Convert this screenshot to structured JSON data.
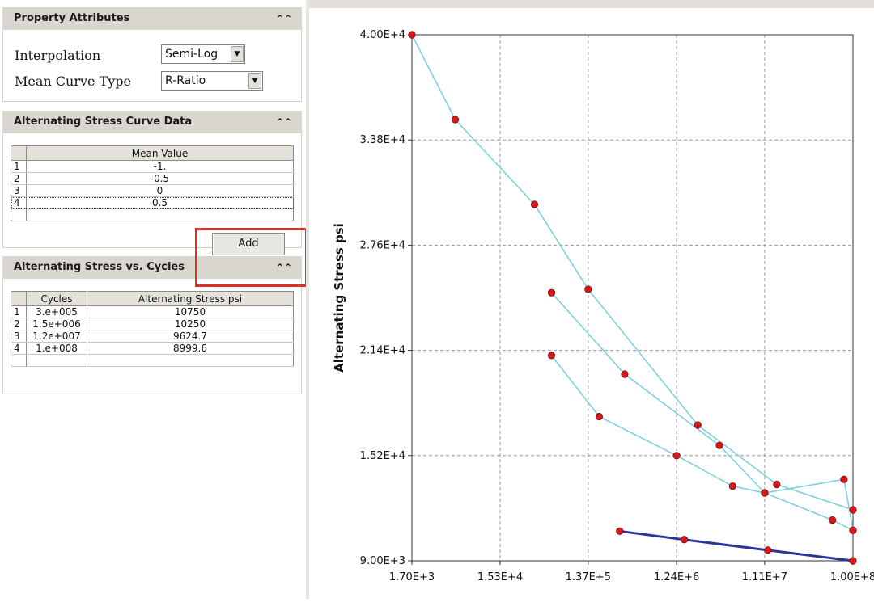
{
  "property_attributes": {
    "header": "Property Attributes",
    "collapse_icon": "double-chevron-up-icon",
    "interpolation_label": "Interpolation",
    "interpolation_value": "Semi-Log",
    "mean_curve_label": "Mean Curve Type",
    "mean_curve_value": "R-Ratio"
  },
  "curve_data": {
    "header": "Alternating Stress Curve Data",
    "column": "Mean Value",
    "rows": [
      {
        "num": "1",
        "value": "-1."
      },
      {
        "num": "2",
        "value": "-0.5"
      },
      {
        "num": "3",
        "value": "0"
      },
      {
        "num": "4",
        "value": "0.5"
      }
    ],
    "add_label": "Add"
  },
  "stress_cycles": {
    "header": "Alternating Stress vs. Cycles",
    "columns": [
      "Cycles",
      "Alternating Stress psi"
    ],
    "rows": [
      {
        "num": "1",
        "cycles": "3.e+005",
        "stress": "10750"
      },
      {
        "num": "2",
        "cycles": "1.5e+006",
        "stress": "10250"
      },
      {
        "num": "3",
        "cycles": "1.2e+007",
        "stress": "9624.7"
      },
      {
        "num": "4",
        "cycles": "1.e+008",
        "stress": "8999.6"
      }
    ]
  },
  "chart_data": {
    "type": "line",
    "title": "",
    "xlabel": "",
    "ylabel": "Alternating Stress psi",
    "x_scale": "log",
    "xlim": [
      1700,
      100000000
    ],
    "ylim": [
      9000,
      40000
    ],
    "x_ticks": [
      1700,
      15300,
      137000,
      1240000,
      11100000,
      100000000
    ],
    "x_tick_labels": [
      "1.70E+3",
      "1.53E+4",
      "1.37E+5",
      "1.24E+6",
      "1.11E+7",
      "1.00E+8"
    ],
    "y_ticks": [
      9000,
      15200,
      21400,
      27600,
      33800,
      40000
    ],
    "y_tick_labels": [
      "9.00E+3",
      "1.52E+4",
      "2.14E+4",
      "2.76E+4",
      "3.38E+4",
      "4.00E+4"
    ],
    "grid": true,
    "colors": {
      "curve": "#7fd0df",
      "selected_curve": "#2b3597",
      "marker": "#d61a1a"
    },
    "series": [
      {
        "selected": false,
        "points": [
          [
            1700,
            40000
          ],
          [
            5000,
            35000
          ],
          [
            36000,
            30000
          ],
          [
            137000,
            25000
          ],
          [
            2100000,
            17000
          ],
          [
            15000000,
            13500
          ],
          [
            100000000,
            12000
          ]
        ]
      },
      {
        "selected": false,
        "points": [
          [
            55000,
            24800
          ],
          [
            340000,
            20000
          ],
          [
            3600000,
            15800
          ],
          [
            11100000,
            13000
          ],
          [
            60000000,
            11400
          ],
          [
            100000000,
            10800
          ]
        ]
      },
      {
        "selected": false,
        "points": [
          [
            55000,
            21100
          ],
          [
            180000,
            17500
          ],
          [
            1240000,
            15200
          ],
          [
            5000000,
            13400
          ],
          [
            11100000,
            13000
          ],
          [
            80000000,
            13800
          ],
          [
            100000000,
            10800
          ]
        ]
      },
      {
        "selected": true,
        "points": [
          [
            300000,
            10750
          ],
          [
            1500000,
            10250
          ],
          [
            12000000,
            9624.7
          ],
          [
            100000000,
            8999.6
          ]
        ]
      }
    ]
  }
}
